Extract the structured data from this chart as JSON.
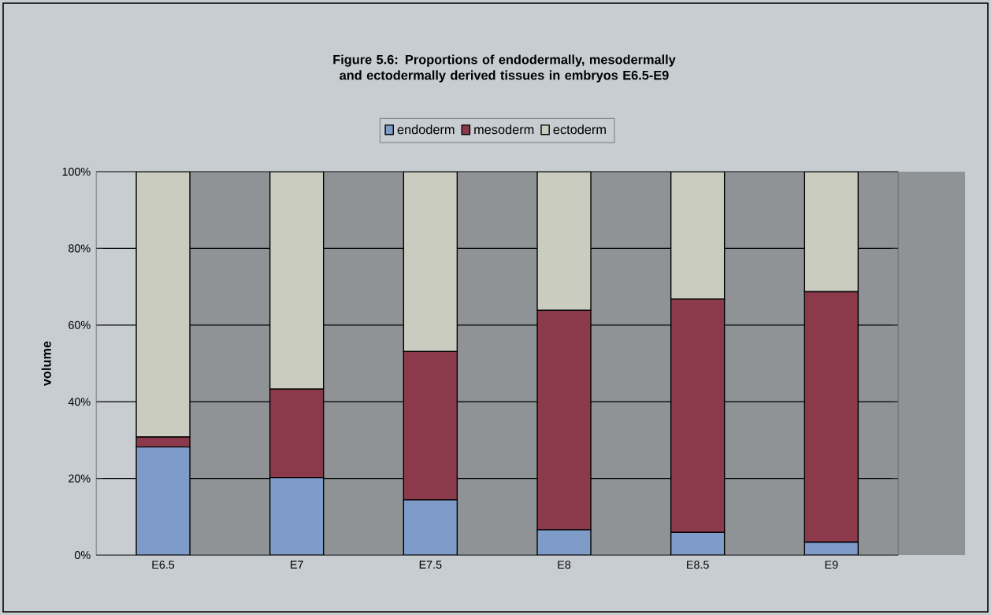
{
  "chart_data": {
    "type": "bar",
    "stacked": true,
    "title": "Figure 5.6: Proportions of endodermally, mesodermally and ectodermally derived tissues in embryos E6.5-E9",
    "ylabel": "volume",
    "categories": [
      "E6.5",
      "E7",
      "E7.5",
      "E8",
      "E8.5",
      "E9"
    ],
    "series": [
      {
        "name": "endoderm",
        "color": "#7f9cc8",
        "values": [
          28.2,
          20.2,
          14.4,
          6.6,
          5.9,
          3.4
        ]
      },
      {
        "name": "mesoderm",
        "color": "#8b3a4c",
        "values": [
          2.6,
          23.1,
          38.7,
          57.2,
          60.9,
          65.3
        ]
      },
      {
        "name": "ectoderm",
        "color": "#c9ccbe",
        "values": [
          69.2,
          56.7,
          46.9,
          36.2,
          33.2,
          31.3
        ]
      }
    ],
    "ylim": [
      0,
      100
    ],
    "yticks": [
      {
        "value": 0,
        "label": "0%"
      },
      {
        "value": 20,
        "label": "20%"
      },
      {
        "value": 40,
        "label": "40%"
      },
      {
        "value": 60,
        "label": "60%"
      },
      {
        "value": 80,
        "label": "80%"
      },
      {
        "value": 100,
        "label": "100%"
      }
    ],
    "grid": "y",
    "legend": "top"
  }
}
